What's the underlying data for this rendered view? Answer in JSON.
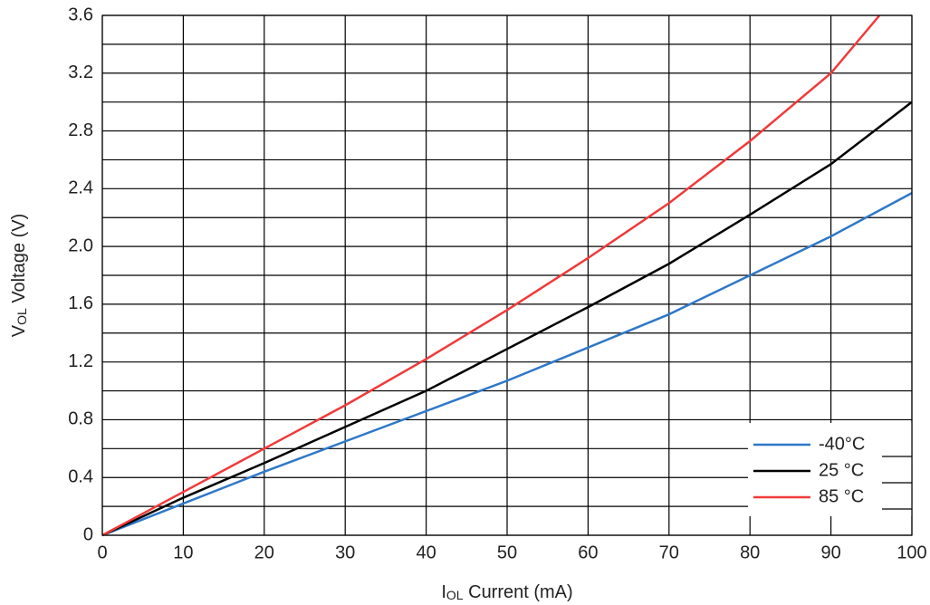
{
  "chart_data": {
    "type": "line",
    "xlabel": {
      "main": "I",
      "sub": "OL",
      "rest": " Current (mA)"
    },
    "ylabel": {
      "main": "V",
      "sub": "OL",
      "rest": " Voltage (V)"
    },
    "xlim": [
      0,
      100
    ],
    "xticks": [
      0,
      10,
      20,
      30,
      40,
      50,
      60,
      70,
      80,
      90,
      100
    ],
    "ylim": [
      0,
      3.6
    ],
    "yticks": [
      0,
      0.4,
      0.8,
      1.2,
      1.6,
      {
        "value": 2,
        "label": "2.0"
      },
      2.4,
      2.8,
      3.2,
      3.6
    ],
    "y_minor_grid": [
      0.2,
      0.6,
      1,
      1.4,
      1.8,
      2.2,
      2.6,
      3,
      3.4
    ],
    "grid": true,
    "legend": "lower right",
    "series": [
      {
        "name": "-40°C",
        "color": "#2f78c8",
        "x": [
          0,
          10,
          20,
          30,
          40,
          50,
          60,
          70,
          80,
          90,
          100
        ],
        "values": [
          0,
          0.22,
          0.44,
          0.65,
          0.86,
          1.07,
          1.3,
          1.53,
          1.8,
          2.07,
          2.37
        ]
      },
      {
        "name": "25 °C",
        "color": "#000000",
        "x": [
          0,
          10,
          20,
          30,
          40,
          50,
          60,
          70,
          80,
          90,
          100
        ],
        "values": [
          0,
          0.26,
          0.5,
          0.75,
          1.0,
          1.29,
          1.58,
          1.88,
          2.22,
          2.57,
          3.0
        ]
      },
      {
        "name": "85 °C",
        "color": "#f03a3a",
        "x": [
          0,
          10,
          20,
          30,
          40,
          50,
          60,
          70,
          80,
          90,
          96
        ],
        "values": [
          0,
          0.3,
          0.6,
          0.9,
          1.22,
          1.56,
          1.92,
          2.3,
          2.73,
          3.2,
          3.6
        ]
      }
    ]
  }
}
